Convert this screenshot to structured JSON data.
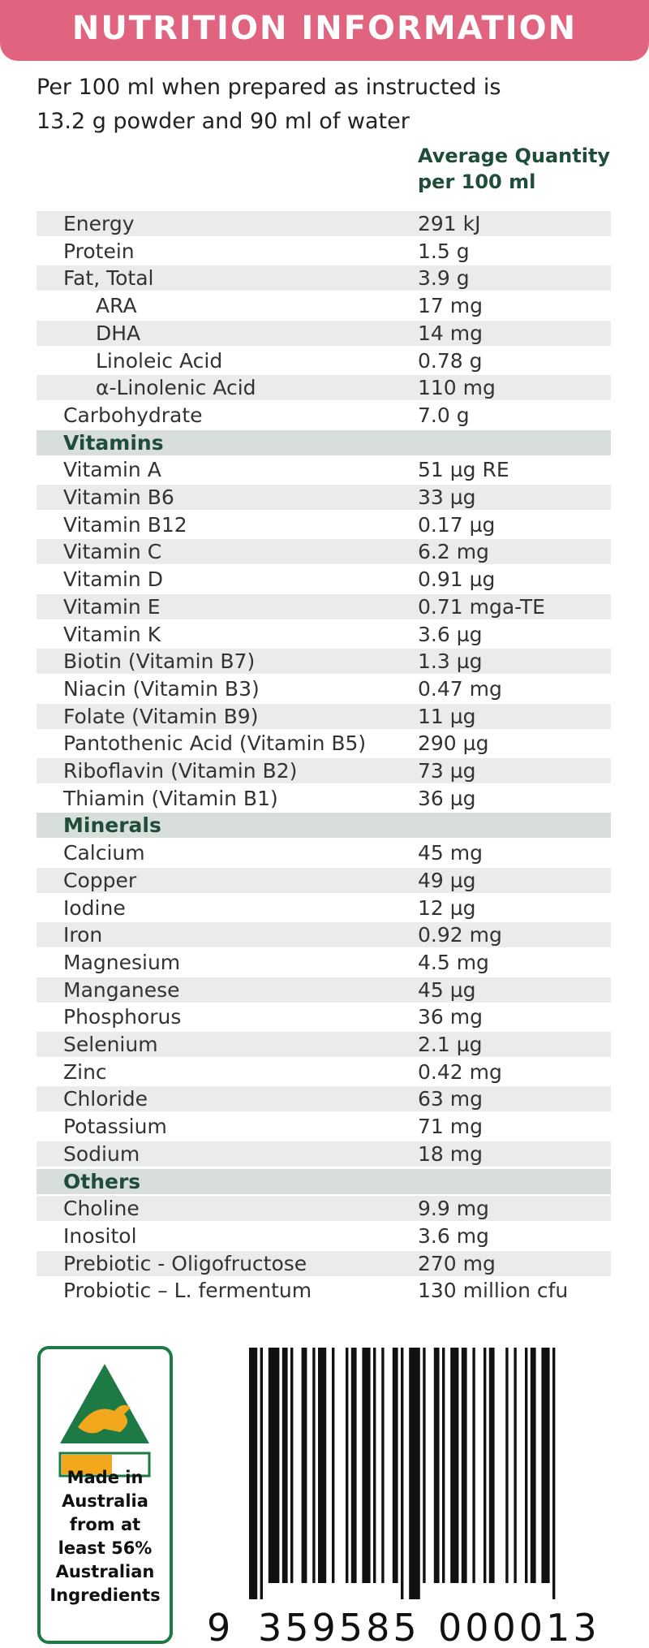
{
  "header": {
    "title": "NUTRITION INFORMATION"
  },
  "intro": {
    "lines": [
      "Per 100 ml when prepared as instructed is",
      "13.2 g powder and 90 ml of water"
    ]
  },
  "column_header": {
    "lines": [
      "Average Quantity",
      "per 100 ml"
    ]
  },
  "table": {
    "groups": [
      {
        "rows": [
          {
            "name": "Energy",
            "value": "291 kJ"
          },
          {
            "name": "Protein",
            "value": "1.5 g"
          },
          {
            "name": "Fat, Total",
            "value": "3.9 g",
            "sub_rows": [
              {
                "name": "ARA",
                "value": "17 mg"
              },
              {
                "name": "DHA",
                "value": "14 mg"
              },
              {
                "name": "Linoleic Acid",
                "value": "0.78 g"
              },
              {
                "name": "α-Linolenic Acid",
                "value": "110 mg"
              }
            ]
          },
          {
            "name": "Carbohydrate",
            "value": "7.0 g"
          }
        ]
      },
      {
        "heading": "Vitamins",
        "rows": [
          {
            "name": "Vitamin A",
            "value": "51 µg RE"
          },
          {
            "name": "Vitamin B6",
            "value": "33 µg"
          },
          {
            "name": "Vitamin B12",
            "value": "0.17 µg"
          },
          {
            "name": "Vitamin C",
            "value": "6.2 mg"
          },
          {
            "name": "Vitamin D",
            "value": "0.91 µg"
          },
          {
            "name": "Vitamin E",
            "value": "0.71 mga-TE"
          },
          {
            "name": "Vitamin K",
            "value": "3.6 µg"
          },
          {
            "name": "Biotin (Vitamin B7)",
            "value": "1.3 µg"
          },
          {
            "name": "Niacin (Vitamin B3)",
            "value": "0.47 mg"
          },
          {
            "name": "Folate (Vitamin B9)",
            "value": "11 µg"
          },
          {
            "name": "Pantothenic Acid (Vitamin B5)",
            "value": "290 µg"
          },
          {
            "name": "Riboflavin (Vitamin B2)",
            "value": "73 µg"
          },
          {
            "name": "Thiamin (Vitamin B1)",
            "value": "36 µg"
          }
        ]
      },
      {
        "heading": "Minerals",
        "rows": [
          {
            "name": "Calcium",
            "value": "45 mg"
          },
          {
            "name": "Copper",
            "value": "49 µg"
          },
          {
            "name": "Iodine",
            "value": "12 µg"
          },
          {
            "name": "Iron",
            "value": "0.92 mg"
          },
          {
            "name": "Magnesium",
            "value": "4.5 mg"
          },
          {
            "name": "Manganese",
            "value": "45 µg"
          },
          {
            "name": "Phosphorus",
            "value": "36 mg"
          },
          {
            "name": "Selenium",
            "value": "2.1 µg"
          },
          {
            "name": "Zinc",
            "value": "0.42 mg"
          },
          {
            "name": "Chloride",
            "value": "63 mg"
          },
          {
            "name": "Potassium",
            "value": "71 mg"
          },
          {
            "name": "Sodium",
            "value": "18 mg"
          }
        ]
      },
      {
        "heading": "Others",
        "rows": [
          {
            "name": "Choline",
            "value": "9.9 mg"
          },
          {
            "name": "Inositol",
            "value": "3.6 mg"
          },
          {
            "name": "Prebiotic - Oligofructose",
            "value": "270 mg"
          },
          {
            "name": "Probiotic – L. fermentum",
            "value": "130 million cfu"
          }
        ]
      }
    ]
  },
  "logo": {
    "lines": [
      "Made in",
      "Australia",
      "from at",
      "least 56%",
      "Australian",
      "Ingredients"
    ]
  },
  "barcode": {
    "digits": [
      "9",
      "359585",
      "000013"
    ]
  }
}
